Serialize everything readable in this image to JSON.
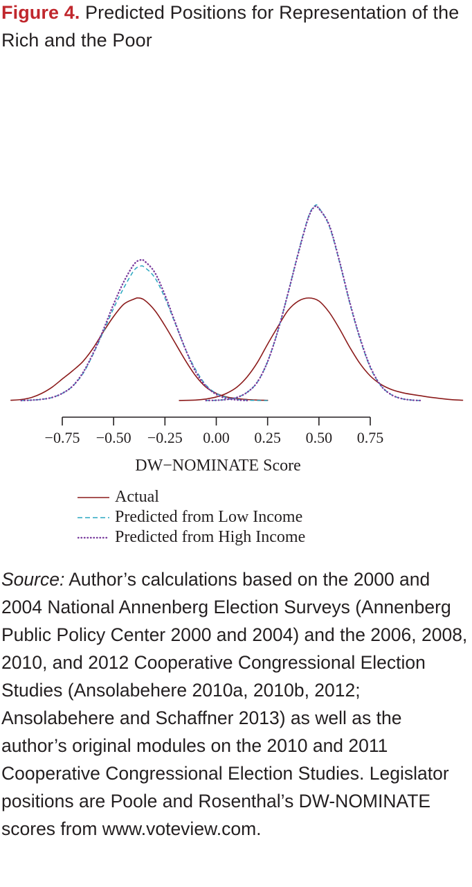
{
  "figure": {
    "label": "Figure 4.",
    "title": "Predicted Positions for Representation of the Rich and the Poor"
  },
  "chart_data": {
    "type": "line",
    "xlabel": "DW−NOMINATE Score",
    "ylabel": "",
    "xlim": [
      -0.75,
      0.75
    ],
    "x_ticks": [
      -0.75,
      -0.5,
      -0.25,
      0.0,
      0.25,
      0.5,
      0.75
    ],
    "x_tick_labels": [
      "−0.75",
      "−0.50",
      "−0.25",
      "0.00",
      "0.25",
      "0.50",
      "0.75"
    ],
    "y_axis_shown": false,
    "grid": false,
    "legend_placement": "below",
    "series": [
      {
        "name": "Actual",
        "color": "#8b1a1a",
        "style": "solid",
        "segments": [
          {
            "x": [
              -1.0,
              -0.95,
              -0.9,
              -0.85,
              -0.8,
              -0.75,
              -0.7,
              -0.65,
              -0.6,
              -0.55,
              -0.5,
              -0.45,
              -0.4,
              -0.38,
              -0.35,
              -0.3,
              -0.25,
              -0.2,
              -0.15,
              -0.1,
              -0.05,
              0.0,
              0.05,
              0.1,
              0.15,
              0.2,
              0.25
            ],
            "y": [
              0.003,
              0.01,
              0.03,
              0.07,
              0.13,
              0.21,
              0.29,
              0.38,
              0.51,
              0.67,
              0.82,
              0.94,
              0.99,
              1.0,
              0.98,
              0.88,
              0.73,
              0.56,
              0.39,
              0.24,
              0.13,
              0.07,
              0.035,
              0.02,
              0.01,
              0.005,
              0.002
            ]
          },
          {
            "x": [
              -0.18,
              -0.1,
              -0.05,
              0.0,
              0.05,
              0.1,
              0.15,
              0.2,
              0.25,
              0.3,
              0.35,
              0.4,
              0.45,
              0.5,
              0.55,
              0.6,
              0.65,
              0.7,
              0.75,
              0.8,
              0.85,
              0.9,
              0.95,
              1.0,
              1.05,
              1.1,
              1.15,
              1.2
            ],
            "y": [
              0.001,
              0.005,
              0.015,
              0.035,
              0.07,
              0.13,
              0.23,
              0.37,
              0.55,
              0.72,
              0.88,
              0.97,
              1.0,
              0.97,
              0.86,
              0.7,
              0.52,
              0.36,
              0.24,
              0.16,
              0.11,
              0.08,
              0.06,
              0.045,
              0.03,
              0.018,
              0.008,
              0.003
            ]
          }
        ]
      },
      {
        "name": "Predicted from Low Income",
        "color": "#2aa7c0",
        "style": "dashed",
        "segments": [
          {
            "x": [
              -0.95,
              -0.9,
              -0.85,
              -0.8,
              -0.75,
              -0.7,
              -0.65,
              -0.6,
              -0.55,
              -0.5,
              -0.45,
              -0.4,
              -0.37,
              -0.35,
              -0.3,
              -0.25,
              -0.2,
              -0.15,
              -0.1,
              -0.05,
              0.0,
              0.05,
              0.1,
              0.15,
              0.2,
              0.25
            ],
            "y": [
              0.0,
              0.004,
              0.012,
              0.03,
              0.07,
              0.14,
              0.26,
              0.45,
              0.67,
              0.9,
              1.1,
              1.27,
              1.31,
              1.3,
              1.2,
              1.0,
              0.75,
              0.5,
              0.3,
              0.15,
              0.07,
              0.03,
              0.012,
              0.004,
              0.001,
              0.0
            ]
          },
          {
            "x": [
              -0.05,
              0.0,
              0.05,
              0.1,
              0.15,
              0.2,
              0.25,
              0.3,
              0.35,
              0.4,
              0.45,
              0.48,
              0.5,
              0.55,
              0.6,
              0.65,
              0.7,
              0.75,
              0.8,
              0.85,
              0.9,
              0.95,
              1.0
            ],
            "y": [
              0.0,
              0.003,
              0.01,
              0.03,
              0.08,
              0.18,
              0.38,
              0.68,
              1.05,
              1.45,
              1.8,
              1.9,
              1.88,
              1.7,
              1.35,
              0.95,
              0.6,
              0.32,
              0.15,
              0.06,
              0.02,
              0.005,
              0.0
            ]
          }
        ]
      },
      {
        "name": "Predicted from High Income",
        "color": "#7a3d9e",
        "style": "dotted",
        "segments": [
          {
            "x": [
              -0.95,
              -0.9,
              -0.85,
              -0.8,
              -0.75,
              -0.7,
              -0.65,
              -0.6,
              -0.55,
              -0.5,
              -0.45,
              -0.4,
              -0.37,
              -0.35,
              -0.3,
              -0.25,
              -0.2,
              -0.15,
              -0.1,
              -0.05,
              0.0,
              0.05,
              0.1,
              0.15
            ],
            "y": [
              0.0,
              0.004,
              0.012,
              0.03,
              0.07,
              0.14,
              0.27,
              0.46,
              0.69,
              0.94,
              1.16,
              1.33,
              1.37,
              1.36,
              1.25,
              1.03,
              0.76,
              0.5,
              0.28,
              0.14,
              0.06,
              0.02,
              0.006,
              0.0
            ]
          },
          {
            "x": [
              -0.05,
              0.0,
              0.05,
              0.1,
              0.15,
              0.2,
              0.25,
              0.3,
              0.35,
              0.4,
              0.45,
              0.48,
              0.5,
              0.55,
              0.6,
              0.65,
              0.7,
              0.75,
              0.8,
              0.85,
              0.9,
              0.95,
              1.0
            ],
            "y": [
              0.0,
              0.003,
              0.01,
              0.03,
              0.08,
              0.18,
              0.38,
              0.68,
              1.05,
              1.44,
              1.79,
              1.89,
              1.87,
              1.71,
              1.36,
              0.96,
              0.61,
              0.33,
              0.15,
              0.06,
              0.02,
              0.005,
              0.0
            ]
          }
        ]
      }
    ]
  },
  "legend": [
    {
      "label": "Actual"
    },
    {
      "label": "Predicted from Low Income"
    },
    {
      "label": "Predicted from High Income"
    }
  ],
  "source": {
    "lead": "Source:",
    "text": " Author’s calculations based on the 2000 and 2004 National Annenberg Election Surveys (Annenberg Public Policy Center 2000 and 2004) and the 2006, 2008, 2010, and 2012 Cooperative Congressional Election Studies (Ansolabehere 2010a, 2010b, 2012; Ansolabehere and Schaffner 2013) as well as the author’s original modules on the 2010 and 2011 Cooperative Congressional Election Studies. Legislator positions are Poole and Rosenthal’s DW-NOMINATE scores from www.voteview.com."
  }
}
